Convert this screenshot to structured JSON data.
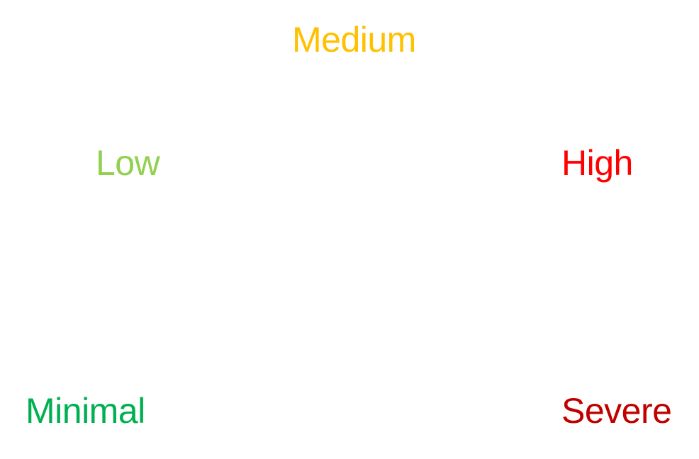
{
  "levels": [
    {
      "key": "medium",
      "label": "Medium",
      "color": "#FFC000"
    },
    {
      "key": "low",
      "label": "Low",
      "color": "#92D050"
    },
    {
      "key": "high",
      "label": "High",
      "color": "#FF0000"
    },
    {
      "key": "minimal",
      "label": "Minimal",
      "color": "#00B050"
    },
    {
      "key": "severe",
      "label": "Severe",
      "color": "#C00000"
    }
  ]
}
